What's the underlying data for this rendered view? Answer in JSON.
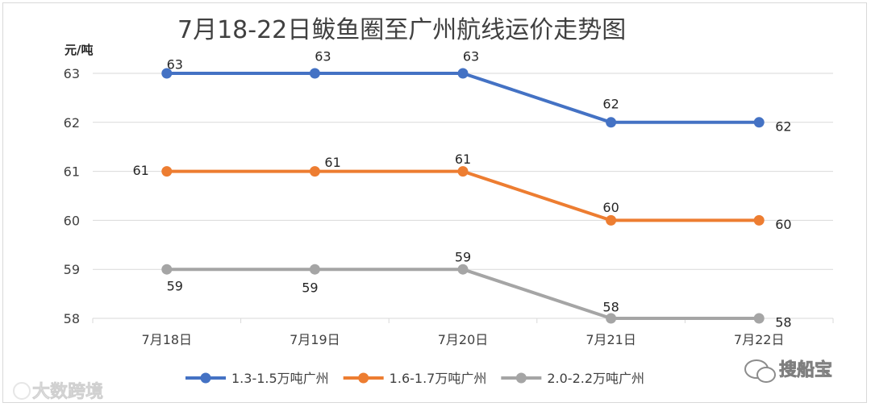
{
  "chart_data": {
    "type": "line",
    "title": "7月18-22日鲅鱼圈至广州航线运价走势图",
    "y_unit_label": "元/吨",
    "categories": [
      "7月18日",
      "7月19日",
      "7月20日",
      "7月21日",
      "7月22日"
    ],
    "ylim": [
      58,
      63
    ],
    "y_ticks": [
      63,
      62,
      61,
      60,
      59,
      58
    ],
    "grid": true,
    "legend_position": "bottom",
    "series": [
      {
        "name": "1.3-1.5万吨广州",
        "color": "#4472c4",
        "values": [
          63,
          63,
          63,
          62,
          62
        ]
      },
      {
        "name": "1.6-1.7万吨广州",
        "color": "#ed7d31",
        "values": [
          61,
          61,
          61,
          60,
          60
        ]
      },
      {
        "name": "2.0-2.2万吨广州",
        "color": "#a5a5a5",
        "values": [
          59,
          59,
          59,
          58,
          58
        ]
      }
    ]
  },
  "watermarks": {
    "left": "大数跨境",
    "right": "搜船宝"
  }
}
